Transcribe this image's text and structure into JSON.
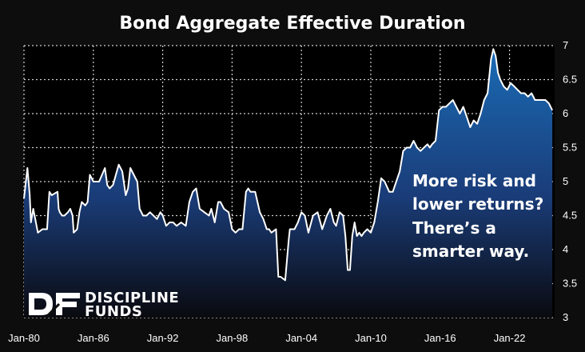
{
  "chart_data": {
    "type": "area",
    "title": "Bond Aggregate  Effective Duration",
    "xlabel": "",
    "ylabel": "",
    "x_tick_labels": [
      "Jan-80",
      "Jan-86",
      "Jan-92",
      "Jan-98",
      "Jan-04",
      "Jan-10",
      "Jan-16",
      "Jan-22"
    ],
    "x_tick_years": [
      1980,
      1986,
      1992,
      1998,
      2004,
      2010,
      2016,
      2022
    ],
    "xlim": [
      1980,
      2025.9
    ],
    "y_tick_labels": [
      "3",
      "3.5",
      "4",
      "4.5",
      "5",
      "5.5",
      "6",
      "6.5",
      "7"
    ],
    "y_tick_values": [
      3,
      3.5,
      4,
      4.5,
      5,
      5.5,
      6,
      6.5,
      7
    ],
    "ylim": [
      3,
      7
    ],
    "y_axis_side": "right",
    "grid": true,
    "series": [
      {
        "x": [
          1980.0,
          1980.3,
          1980.5,
          1980.6,
          1980.8,
          1981.2,
          1981.6,
          1982.0,
          1982.2,
          1982.4,
          1982.9,
          1983.0,
          1983.1,
          1983.3,
          1983.5,
          1983.8,
          1984.0,
          1984.2,
          1984.3,
          1984.6,
          1984.8,
          1985.0,
          1985.3,
          1985.5,
          1985.7,
          1986.0,
          1986.5,
          1987.0,
          1987.2,
          1987.4,
          1987.7,
          1988.2,
          1988.5,
          1988.8,
          1989.0,
          1989.2,
          1989.5,
          1989.8,
          1990.0,
          1990.3,
          1990.6,
          1990.9,
          1991.2,
          1991.5,
          1991.8,
          1992.0,
          1992.3,
          1992.6,
          1992.9,
          1993.2,
          1993.6,
          1994.0,
          1994.3,
          1994.6,
          1994.9,
          1995.2,
          1995.6,
          1996.0,
          1996.2,
          1996.5,
          1996.8,
          1997.0,
          1997.3,
          1997.7,
          1998.0,
          1998.3,
          1998.6,
          1998.9,
          1999.2,
          1999.4,
          1999.6,
          2000.0,
          2000.4,
          2000.7,
          2001.0,
          2001.2,
          2001.4,
          2001.8,
          2002.0,
          2002.2,
          2002.6,
          2002.9,
          2003.0,
          2003.2,
          2003.4,
          2003.7,
          2004.0,
          2004.3,
          2004.6,
          2005.0,
          2005.4,
          2005.8,
          2006.2,
          2006.5,
          2006.8,
          2007.0,
          2007.3,
          2007.6,
          2007.8,
          2008.0,
          2008.2,
          2008.4,
          2008.6,
          2008.8,
          2009.0,
          2009.2,
          2009.4,
          2009.7,
          2010.0,
          2010.3,
          2010.6,
          2010.9,
          2011.2,
          2011.6,
          2011.9,
          2012.2,
          2012.5,
          2012.8,
          2013.1,
          2013.4,
          2013.7,
          2014.0,
          2014.3,
          2014.6,
          2014.9,
          2015.1,
          2015.3,
          2015.6,
          2015.9,
          2016.2,
          2016.5,
          2016.8,
          2017.1,
          2017.4,
          2017.7,
          2018.0,
          2018.3,
          2018.6,
          2018.9,
          2019.2,
          2019.5,
          2019.8,
          2020.1,
          2020.4,
          2020.6,
          2020.8,
          2021.0,
          2021.2,
          2021.5,
          2021.8,
          2022.1,
          2022.4,
          2022.7,
          2023.0,
          2023.3,
          2023.6,
          2023.9,
          2024.2,
          2024.5,
          2024.8,
          2025.1,
          2025.4,
          2025.7
        ],
        "values": [
          4.75,
          5.2,
          4.8,
          4.4,
          4.6,
          4.25,
          4.3,
          4.3,
          4.85,
          4.8,
          4.85,
          4.6,
          4.55,
          4.5,
          4.5,
          4.55,
          4.6,
          4.5,
          4.25,
          4.3,
          4.55,
          4.7,
          4.65,
          4.7,
          5.1,
          5.0,
          5.0,
          5.2,
          4.95,
          4.9,
          4.95,
          5.25,
          5.15,
          4.8,
          4.9,
          5.2,
          5.1,
          5.0,
          4.6,
          4.5,
          4.5,
          4.55,
          4.5,
          4.45,
          4.55,
          4.5,
          4.35,
          4.4,
          4.4,
          4.35,
          4.4,
          4.35,
          4.7,
          4.85,
          4.9,
          4.6,
          4.55,
          4.5,
          4.6,
          4.4,
          4.7,
          4.7,
          4.6,
          4.55,
          4.3,
          4.25,
          4.3,
          4.3,
          4.85,
          4.9,
          4.85,
          4.85,
          4.55,
          4.45,
          4.3,
          4.3,
          4.25,
          4.3,
          3.6,
          3.6,
          3.55,
          4.15,
          4.3,
          4.3,
          4.3,
          4.4,
          4.55,
          4.5,
          4.25,
          4.5,
          4.55,
          4.3,
          4.5,
          4.6,
          4.4,
          4.35,
          4.55,
          4.5,
          4.2,
          3.7,
          3.7,
          4.2,
          4.4,
          4.2,
          4.25,
          4.2,
          4.25,
          4.3,
          4.25,
          4.4,
          4.7,
          5.05,
          5.0,
          4.85,
          4.85,
          5.0,
          5.15,
          5.45,
          5.5,
          5.5,
          5.6,
          5.5,
          5.45,
          5.5,
          5.55,
          5.5,
          5.55,
          5.6,
          6.05,
          6.1,
          6.1,
          6.15,
          6.2,
          6.1,
          6.0,
          6.1,
          5.95,
          5.8,
          5.9,
          5.85,
          6.0,
          6.2,
          6.3,
          6.8,
          6.95,
          6.85,
          6.6,
          6.5,
          6.4,
          6.35,
          6.45,
          6.4,
          6.35,
          6.3,
          6.3,
          6.25,
          6.3,
          6.2,
          6.2,
          6.2,
          6.2,
          6.15,
          6.05
        ]
      }
    ],
    "annotation_lines": [
      "More risk and",
      "lower returns?",
      "There’s a",
      "smarter way."
    ]
  },
  "logo": {
    "mark": "DF",
    "line1": "DISCIPLINE",
    "line2": "FUNDS"
  },
  "colors": {
    "background": "#0d0d0d",
    "plot_area": "#000000",
    "fill_top": "#1a6bb5",
    "fill_bottom": "#0a0a0f",
    "line": "#ffffff",
    "grid": "#d0d0d0"
  }
}
